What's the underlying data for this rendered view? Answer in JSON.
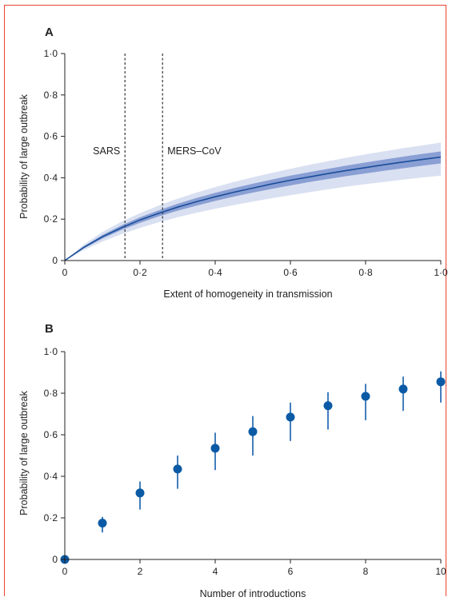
{
  "colors": {
    "frame": "#e8432e",
    "line": "#1a4e9a",
    "band_inner": "#8a9fd4",
    "band_outer": "#d9e0f1",
    "point": "#0b5aa5",
    "errorbar": "#2d6fb5"
  },
  "chart_data": [
    {
      "type": "line",
      "panel": "A",
      "xlabel": "Extent of homogeneity in transmission",
      "ylabel": "Probability of large outbreak",
      "xlim": [
        0,
        1
      ],
      "ylim": [
        0,
        1
      ],
      "xticks": [
        0,
        0.2,
        0.4,
        0.6,
        0.8,
        1.0
      ],
      "xtick_labels": [
        "0",
        "0·2",
        "0·4",
        "0·6",
        "0·8",
        "1·0"
      ],
      "yticks": [
        0,
        0.2,
        0.4,
        0.6,
        0.8,
        1.0
      ],
      "ytick_labels": [
        "0",
        "0·2",
        "0·4",
        "0·6",
        "0·8",
        "1·0"
      ],
      "grid": false,
      "series": [
        {
          "x": [
            0,
            0.05,
            0.1,
            0.15,
            0.2,
            0.25,
            0.3,
            0.35,
            0.4,
            0.45,
            0.5,
            0.55,
            0.6,
            0.65,
            0.7,
            0.75,
            0.8,
            0.85,
            0.9,
            0.95,
            1.0
          ],
          "y": [
            0,
            0.063,
            0.115,
            0.158,
            0.196,
            0.228,
            0.258,
            0.284,
            0.308,
            0.33,
            0.35,
            0.37,
            0.388,
            0.404,
            0.42,
            0.435,
            0.449,
            0.463,
            0.476,
            0.488,
            0.5
          ],
          "inner_lower": [
            0,
            0.058,
            0.106,
            0.147,
            0.182,
            0.213,
            0.241,
            0.265,
            0.288,
            0.309,
            0.328,
            0.346,
            0.363,
            0.379,
            0.394,
            0.408,
            0.421,
            0.434,
            0.446,
            0.458,
            0.469
          ],
          "inner_upper": [
            0,
            0.068,
            0.123,
            0.169,
            0.209,
            0.243,
            0.274,
            0.302,
            0.327,
            0.35,
            0.371,
            0.391,
            0.41,
            0.427,
            0.443,
            0.459,
            0.474,
            0.488,
            0.502,
            0.515,
            0.527
          ],
          "outer_lower": [
            0,
            0.05,
            0.092,
            0.127,
            0.158,
            0.185,
            0.209,
            0.231,
            0.25,
            0.268,
            0.285,
            0.301,
            0.316,
            0.33,
            0.344,
            0.357,
            0.369,
            0.38,
            0.391,
            0.401,
            0.41
          ],
          "outer_upper": [
            0,
            0.077,
            0.138,
            0.187,
            0.229,
            0.266,
            0.299,
            0.328,
            0.355,
            0.38,
            0.402,
            0.423,
            0.443,
            0.462,
            0.48,
            0.497,
            0.513,
            0.528,
            0.543,
            0.556,
            0.57
          ]
        }
      ],
      "annotations": [
        {
          "label": "SARS",
          "x": 0.16
        },
        {
          "label": "MERS–CoV",
          "x": 0.26
        }
      ]
    },
    {
      "type": "scatter",
      "panel": "B",
      "xlabel": "Number of introductions",
      "ylabel": "Probability of large outbreak",
      "xlim": [
        0,
        10
      ],
      "ylim": [
        0,
        1
      ],
      "xticks": [
        0,
        2,
        4,
        6,
        8,
        10
      ],
      "xtick_labels": [
        "0",
        "2",
        "4",
        "6",
        "8",
        "10"
      ],
      "yticks": [
        0,
        0.2,
        0.4,
        0.6,
        0.8,
        1.0
      ],
      "ytick_labels": [
        "0",
        "0·2",
        "0·4",
        "0·6",
        "0·8",
        "1·0"
      ],
      "grid": false,
      "series": [
        {
          "x": [
            0,
            1,
            2,
            3,
            4,
            5,
            6,
            7,
            8,
            9,
            10
          ],
          "y": [
            0,
            0.175,
            0.32,
            0.435,
            0.535,
            0.615,
            0.685,
            0.74,
            0.785,
            0.82,
            0.855
          ],
          "lower": [
            0,
            0.13,
            0.24,
            0.34,
            0.43,
            0.5,
            0.57,
            0.625,
            0.67,
            0.715,
            0.755
          ],
          "upper": [
            0,
            0.205,
            0.375,
            0.5,
            0.61,
            0.69,
            0.755,
            0.805,
            0.845,
            0.88,
            0.905
          ]
        }
      ]
    }
  ]
}
